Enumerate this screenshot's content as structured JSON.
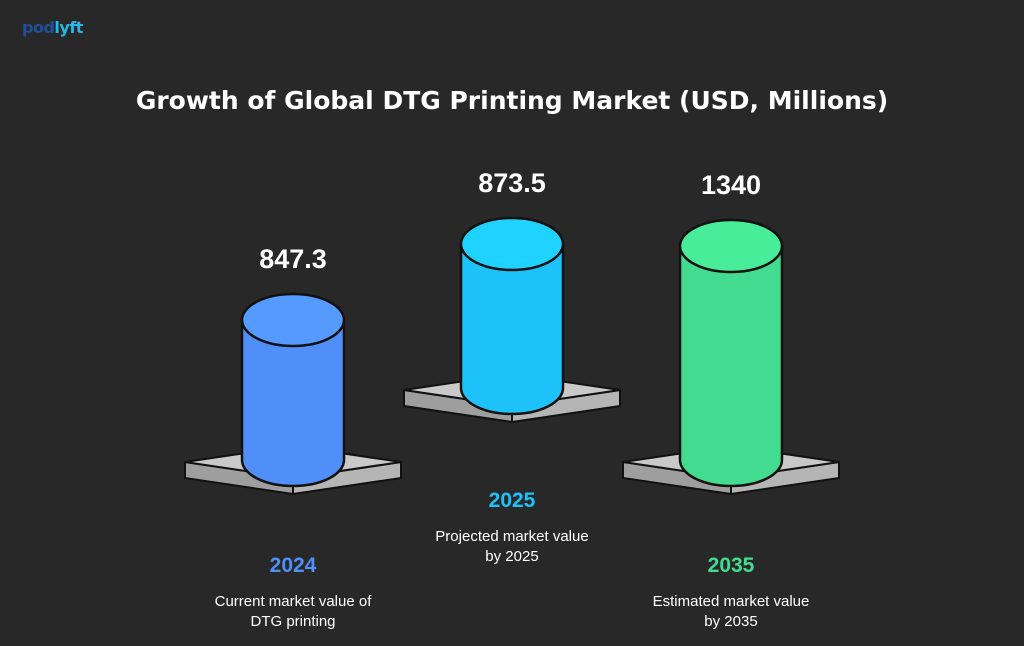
{
  "brand": {
    "part1": "pod",
    "part2": "lyft"
  },
  "chart_data": {
    "type": "bar",
    "title": "Growth of Global DTG Printing Market (USD, Millions)",
    "xlabel": "",
    "ylabel": "USD, Millions",
    "categories": [
      "2024",
      "2025",
      "2035"
    ],
    "values": [
      847.3,
      873.5,
      1340
    ],
    "value_labels": [
      "847.3",
      "873.5",
      "1340"
    ],
    "descriptions": [
      [
        "Current market value of",
        "DTG printing"
      ],
      [
        "Projected market value",
        "by 2025"
      ],
      [
        "Estimated market value",
        "by 2035"
      ]
    ],
    "colors": [
      "#4f8ff7",
      "#1dc2fa",
      "#43db8f"
    ],
    "base_color": "#c9c9c9",
    "background": "#282828"
  }
}
